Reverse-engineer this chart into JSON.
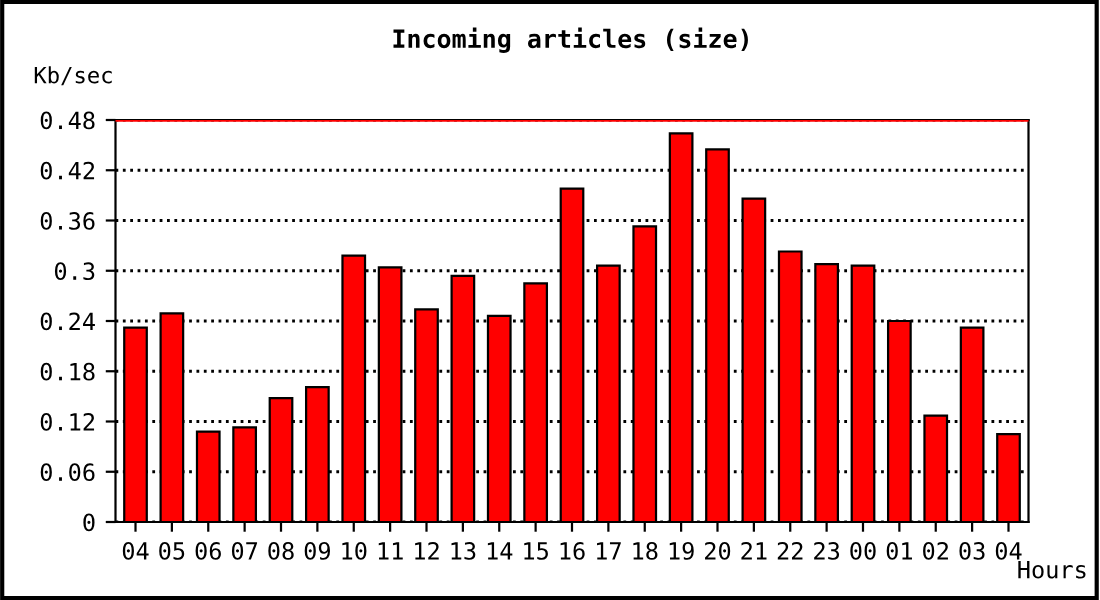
{
  "chart_data": {
    "type": "bar",
    "title": "Incoming articles (size)",
    "ylabel": "Kb/sec",
    "xlabel": "Hours",
    "categories": [
      "04",
      "05",
      "06",
      "07",
      "08",
      "09",
      "10",
      "11",
      "12",
      "13",
      "14",
      "15",
      "16",
      "17",
      "18",
      "19",
      "20",
      "21",
      "22",
      "23",
      "00",
      "01",
      "02",
      "03",
      "04"
    ],
    "values": [
      0.232,
      0.249,
      0.108,
      0.113,
      0.148,
      0.161,
      0.318,
      0.304,
      0.254,
      0.294,
      0.246,
      0.285,
      0.398,
      0.306,
      0.353,
      0.464,
      0.445,
      0.386,
      0.323,
      0.308,
      0.306,
      0.24,
      0.127,
      0.232,
      0.105
    ],
    "color": "#ff0000",
    "ylim": [
      0,
      0.48
    ],
    "yticks": [
      0,
      0.06,
      0.12,
      0.18,
      0.24,
      0.3,
      0.36,
      0.42,
      0.48
    ],
    "ref_lines": [
      {
        "axis": "y",
        "value": 0.48,
        "color": "#ff0000",
        "line_style": "solid"
      }
    ],
    "grid": "y",
    "line_style": "dotted"
  }
}
